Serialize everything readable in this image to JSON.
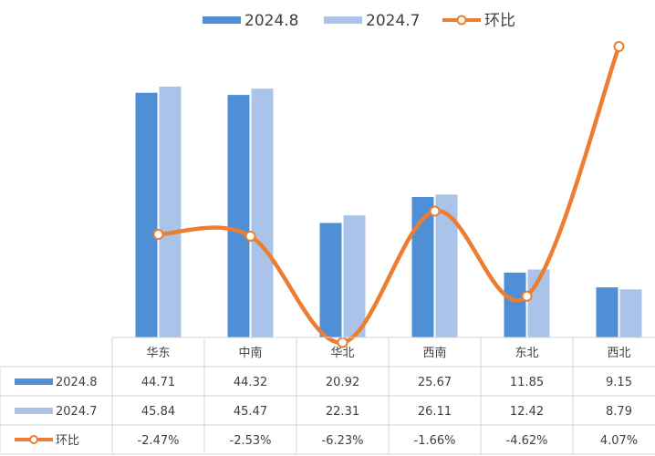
{
  "chart_data": {
    "type": "bar",
    "title": "",
    "xlabel": "",
    "ylabel": "",
    "categories": [
      "华东",
      "中南",
      "华北",
      "西南",
      "东北",
      "西北"
    ],
    "series": [
      {
        "name": "2024.8",
        "type": "bar",
        "color": "#4f8fd6",
        "values": [
          44.71,
          44.32,
          20.92,
          25.67,
          11.85,
          9.15
        ],
        "labels": [
          "44.71",
          "44.32",
          "20.92",
          "25.67",
          "11.85",
          "9.15"
        ]
      },
      {
        "name": "2024.7",
        "type": "bar",
        "color": "#a9c4e8",
        "values": [
          45.84,
          45.47,
          22.31,
          26.11,
          12.42,
          8.79
        ],
        "labels": [
          "45.84",
          "45.47",
          "22.31",
          "26.11",
          "12.42",
          "8.79"
        ]
      },
      {
        "name": "环比",
        "type": "line",
        "color": "#ed7d31",
        "values": [
          -2.47,
          -2.53,
          -6.23,
          -1.66,
          -4.62,
          4.07
        ],
        "labels": [
          "-2.47%",
          "-2.53%",
          "-6.23%",
          "-1.66%",
          "-4.62%",
          "4.07%"
        ]
      }
    ],
    "legend_position": "top",
    "data_table": true,
    "grid": false
  }
}
